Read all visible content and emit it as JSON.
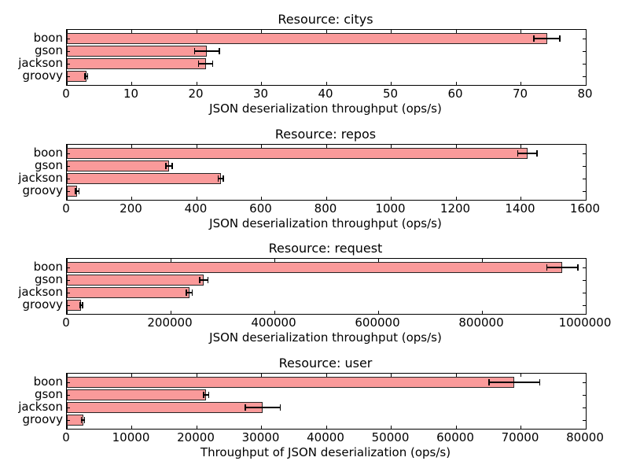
{
  "figure": {
    "background": "#ffffff",
    "colors": {
      "bar_fill": "#fa9a9a",
      "bar_edge": "#262626",
      "axis": "#000000",
      "error": "#000000",
      "text": "#000000"
    }
  },
  "chart_data": [
    {
      "type": "bar",
      "orientation": "horizontal",
      "title": "Resource: citys",
      "xlabel": "JSON deserialization throughput (ops/s)",
      "ylabel": "",
      "categories": [
        "boon",
        "gson",
        "jackson",
        "groovy"
      ],
      "values": [
        74,
        21.6,
        21.4,
        3.0
      ],
      "errors": [
        2.0,
        1.9,
        1.1,
        0.2
      ],
      "xlim": [
        0,
        80
      ],
      "xticks": [
        0,
        10,
        20,
        30,
        40,
        50,
        60,
        70,
        80
      ],
      "xtick_labels": [
        "0",
        "10",
        "20",
        "30",
        "40",
        "50",
        "60",
        "70",
        "80"
      ],
      "grid": false,
      "legend": null
    },
    {
      "type": "bar",
      "orientation": "horizontal",
      "title": "Resource: repos",
      "xlabel": "JSON deserialization throughput (ops/s)",
      "ylabel": "",
      "categories": [
        "boon",
        "gson",
        "jackson",
        "groovy"
      ],
      "values": [
        1420,
        315,
        475,
        32
      ],
      "errors": [
        30,
        10,
        8,
        5
      ],
      "xlim": [
        0,
        1600
      ],
      "xticks": [
        0,
        200,
        400,
        600,
        800,
        1000,
        1200,
        1400,
        1600
      ],
      "xtick_labels": [
        "0",
        "200",
        "400",
        "600",
        "800",
        "1000",
        "1200",
        "1400",
        "1600"
      ],
      "grid": false,
      "legend": null
    },
    {
      "type": "bar",
      "orientation": "horizontal",
      "title": "Resource: request",
      "xlabel": "JSON deserialization throughput (ops/s)",
      "ylabel": "",
      "categories": [
        "boon",
        "gson",
        "jackson",
        "groovy"
      ],
      "values": [
        955000,
        264000,
        236000,
        28000
      ],
      "errors": [
        30000,
        8000,
        6000,
        2000
      ],
      "xlim": [
        0,
        1000000
      ],
      "xticks": [
        0,
        200000,
        400000,
        600000,
        800000,
        1000000
      ],
      "xtick_labels": [
        "0",
        "200000",
        "400000",
        "600000",
        "800000",
        "1000000"
      ],
      "grid": false,
      "legend": null
    },
    {
      "type": "bar",
      "orientation": "horizontal",
      "title": "Resource: user",
      "xlabel": "Throughput of JSON deserialization (ops/s)",
      "ylabel": "",
      "categories": [
        "boon",
        "gson",
        "jackson",
        "groovy"
      ],
      "values": [
        69000,
        21500,
        30200,
        2500
      ],
      "errors": [
        3900,
        400,
        2700,
        250
      ],
      "xlim": [
        0,
        80000
      ],
      "xticks": [
        0,
        10000,
        20000,
        30000,
        40000,
        50000,
        60000,
        70000,
        80000
      ],
      "xtick_labels": [
        "0",
        "10000",
        "20000",
        "30000",
        "40000",
        "50000",
        "60000",
        "70000",
        "80000"
      ],
      "grid": false,
      "legend": null
    }
  ]
}
